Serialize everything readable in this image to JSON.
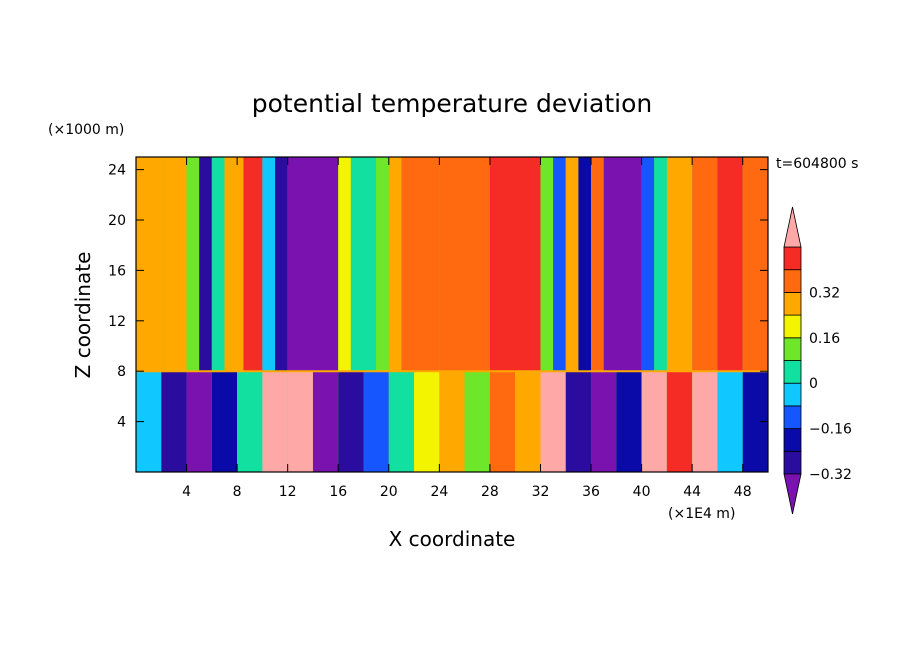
{
  "chart_data": {
    "type": "heatmap",
    "title": "potential temperature deviation",
    "xlabel": "X coordinate",
    "ylabel": "Z coordinate",
    "x_unit": "(×1E4 m)",
    "y_unit": "(×1000 m)",
    "time_label": "t=604800 s",
    "xlim": [
      0,
      50
    ],
    "ylim": [
      0,
      25
    ],
    "x_ticks": [
      "4",
      "8",
      "12",
      "16",
      "20",
      "24",
      "28",
      "32",
      "36",
      "40",
      "44",
      "48"
    ],
    "y_ticks": [
      "4",
      "8",
      "12",
      "16",
      "20",
      "24"
    ],
    "colorbar": {
      "levels": [
        -0.48,
        -0.4,
        -0.32,
        -0.24,
        -0.16,
        -0.08,
        0,
        0.08,
        0.16,
        0.24,
        0.32,
        0.4
      ],
      "labels": [
        "0.32",
        "0.16",
        "0",
        "−0.16",
        "−0.32"
      ],
      "colors": [
        "#7a12b0",
        "#2a0d9e",
        "#0a0aa8",
        "#1656ff",
        "#10c8ff",
        "#12e0a0",
        "#6ee62a",
        "#f2f400",
        "#ffa800",
        "#ff6a10",
        "#f52c26",
        "#ffa8a8"
      ]
    },
    "upper_columns": [
      {
        "x": [
          0,
          2
        ],
        "level": 8
      },
      {
        "x": [
          2,
          4
        ],
        "level": 8
      },
      {
        "x": [
          4,
          5
        ],
        "level": 6
      },
      {
        "x": [
          5,
          6
        ],
        "level": 1
      },
      {
        "x": [
          6,
          7
        ],
        "level": 5
      },
      {
        "x": [
          7,
          8.5
        ],
        "level": 8
      },
      {
        "x": [
          8.5,
          10
        ],
        "level": 10
      },
      {
        "x": [
          10,
          11
        ],
        "level": 4
      },
      {
        "x": [
          11,
          12
        ],
        "level": 1
      },
      {
        "x": [
          12,
          16
        ],
        "level": 0
      },
      {
        "x": [
          16,
          17
        ],
        "level": 7
      },
      {
        "x": [
          17,
          19
        ],
        "level": 5
      },
      {
        "x": [
          19,
          20
        ],
        "level": 6
      },
      {
        "x": [
          20,
          21
        ],
        "level": 8
      },
      {
        "x": [
          21,
          24
        ],
        "level": 9
      },
      {
        "x": [
          24,
          28
        ],
        "level": 9
      },
      {
        "x": [
          28,
          32
        ],
        "level": 10
      },
      {
        "x": [
          32,
          33
        ],
        "level": 6
      },
      {
        "x": [
          33,
          34
        ],
        "level": 3
      },
      {
        "x": [
          34,
          35
        ],
        "level": 8
      },
      {
        "x": [
          35,
          36
        ],
        "level": 2
      },
      {
        "x": [
          36,
          37
        ],
        "level": 9
      },
      {
        "x": [
          37,
          40
        ],
        "level": 0
      },
      {
        "x": [
          40,
          41
        ],
        "level": 3
      },
      {
        "x": [
          41,
          42
        ],
        "level": 5
      },
      {
        "x": [
          42,
          44
        ],
        "level": 8
      },
      {
        "x": [
          44,
          46
        ],
        "level": 9
      },
      {
        "x": [
          46,
          48
        ],
        "level": 10
      },
      {
        "x": [
          48,
          50
        ],
        "level": 9
      }
    ],
    "lower_columns": [
      {
        "x": [
          0,
          2
        ],
        "level": 4
      },
      {
        "x": [
          2,
          4
        ],
        "level": 1
      },
      {
        "x": [
          4,
          6
        ],
        "level": 0
      },
      {
        "x": [
          6,
          8
        ],
        "level": 2
      },
      {
        "x": [
          8,
          10
        ],
        "level": 5
      },
      {
        "x": [
          10,
          12
        ],
        "level": 11
      },
      {
        "x": [
          12,
          14
        ],
        "level": 11
      },
      {
        "x": [
          14,
          16
        ],
        "level": 0
      },
      {
        "x": [
          16,
          18
        ],
        "level": 1
      },
      {
        "x": [
          18,
          20
        ],
        "level": 3
      },
      {
        "x": [
          20,
          22
        ],
        "level": 5
      },
      {
        "x": [
          22,
          24
        ],
        "level": 7
      },
      {
        "x": [
          24,
          26
        ],
        "level": 8
      },
      {
        "x": [
          26,
          28
        ],
        "level": 6
      },
      {
        "x": [
          28,
          30
        ],
        "level": 9
      },
      {
        "x": [
          30,
          32
        ],
        "level": 8
      },
      {
        "x": [
          32,
          34
        ],
        "level": 11
      },
      {
        "x": [
          34,
          36
        ],
        "level": 1
      },
      {
        "x": [
          36,
          38
        ],
        "level": 0
      },
      {
        "x": [
          38,
          40
        ],
        "level": 2
      },
      {
        "x": [
          40,
          42
        ],
        "level": 11
      },
      {
        "x": [
          42,
          44
        ],
        "level": 10
      },
      {
        "x": [
          44,
          46
        ],
        "level": 11
      },
      {
        "x": [
          46,
          48
        ],
        "level": 4
      },
      {
        "x": [
          48,
          50
        ],
        "level": 2
      }
    ]
  }
}
